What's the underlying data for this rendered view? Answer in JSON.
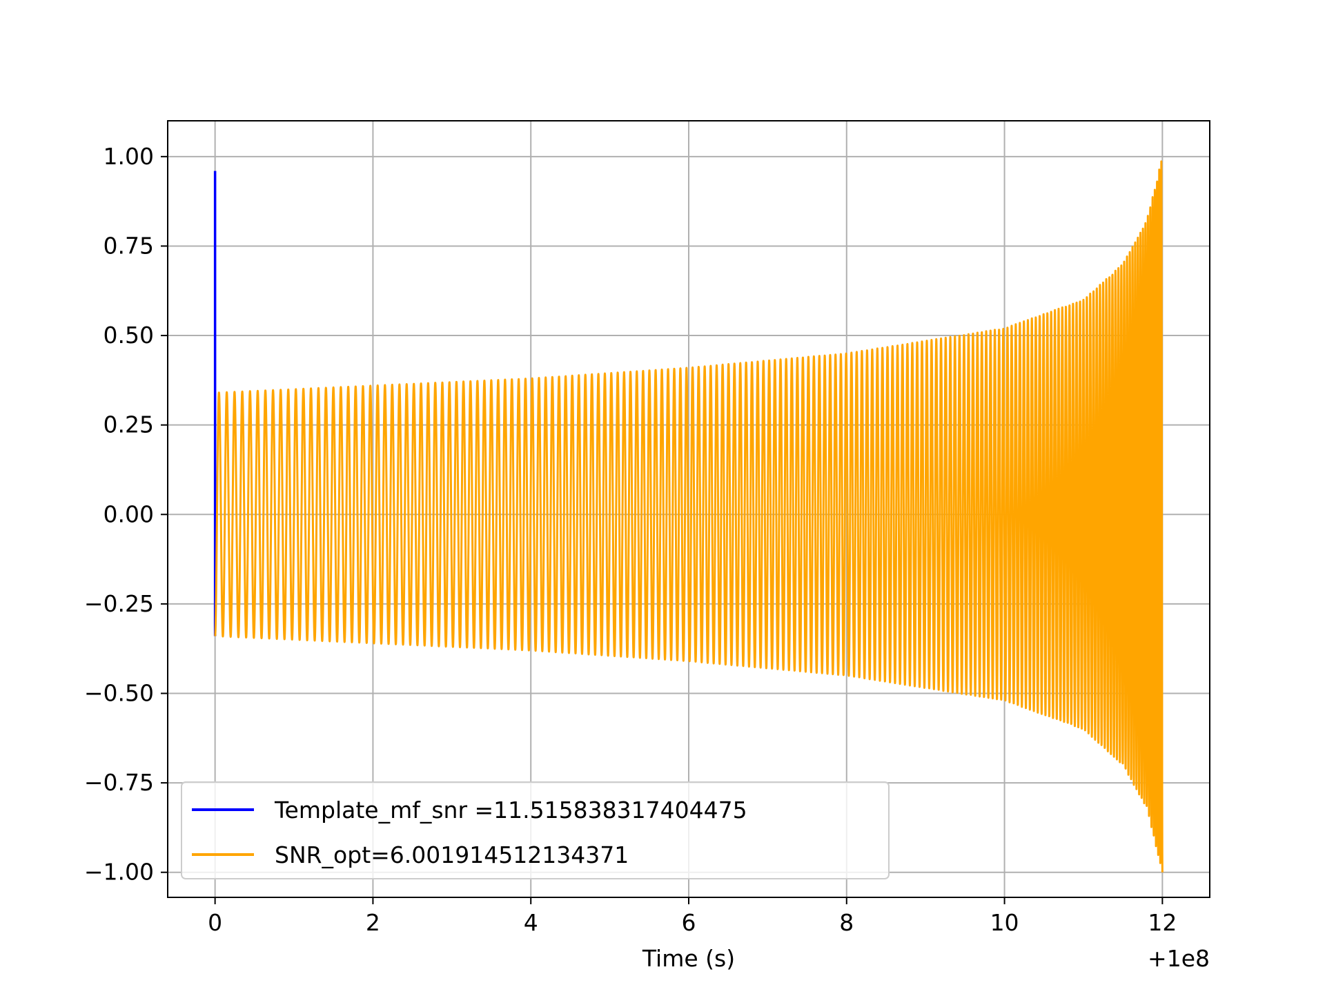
{
  "chart_data": {
    "type": "line",
    "title": "",
    "xlabel": "Time (s)",
    "ylabel": "",
    "x_offset_label": "+1e8",
    "xlim": [
      -0.6,
      12.6
    ],
    "ylim": [
      -1.07,
      1.1
    ],
    "x_ticks": [
      0,
      2,
      4,
      6,
      8,
      10,
      12
    ],
    "x_tick_labels": [
      "0",
      "2",
      "4",
      "6",
      "8",
      "10",
      "12"
    ],
    "y_ticks": [
      1.0,
      0.75,
      0.5,
      0.25,
      0.0,
      -0.25,
      -0.5,
      -0.75,
      -1.0
    ],
    "y_tick_labels": [
      "1.00",
      "0.75",
      "0.50",
      "0.25",
      "0.00",
      "−0.25",
      "−0.50",
      "−0.75",
      "−1.00"
    ],
    "grid": true,
    "legend_position": "lower-left",
    "series": [
      {
        "name": "Template_mf_snr =11.515838317404475",
        "color": "#0000ff",
        "shape": "spike",
        "points": [
          [
            0.0,
            -0.34
          ],
          [
            0.0,
            0.96
          ]
        ]
      },
      {
        "name": "SNR_opt=6.001914512134371",
        "color": "#ffa500",
        "shape": "chirp",
        "x_start": 0.0,
        "x_end": 12.0,
        "envelope_x": [
          0.0,
          2.0,
          4.0,
          6.0,
          8.0,
          10.0,
          11.0,
          11.5,
          11.8,
          12.0
        ],
        "envelope_y": [
          0.34,
          0.36,
          0.38,
          0.41,
          0.45,
          0.52,
          0.6,
          0.7,
          0.82,
          1.0
        ],
        "cycles": 178
      }
    ]
  }
}
